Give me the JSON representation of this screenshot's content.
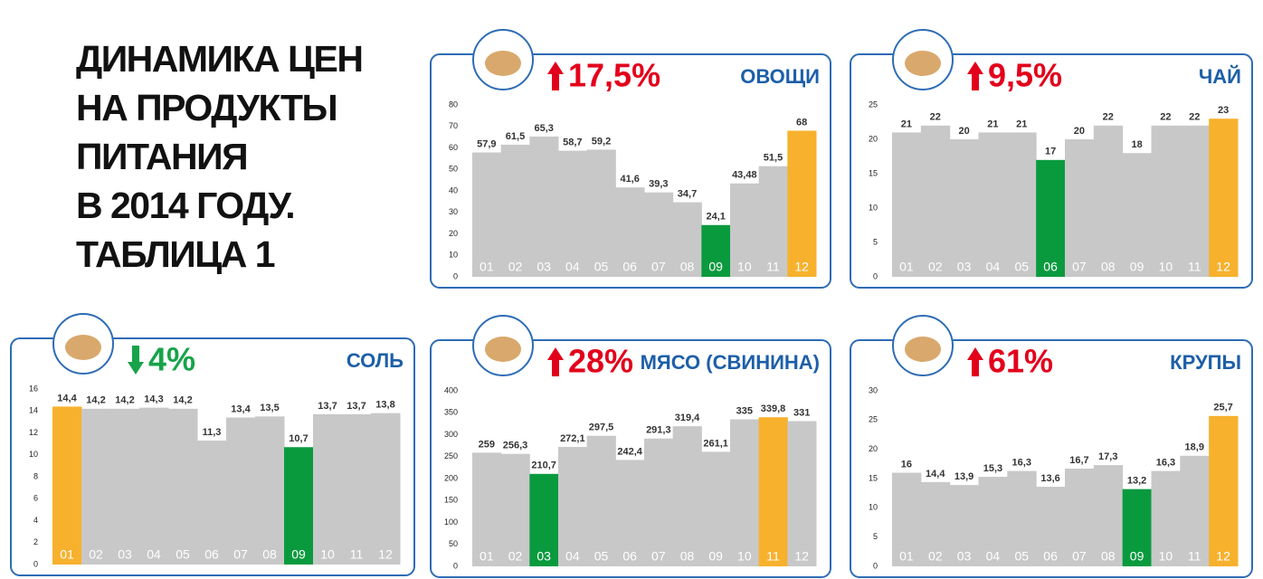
{
  "title_lines": [
    "ДИНАМИКА ЦЕН",
    "НА ПРОДУКТЫ",
    "ПИТАНИЯ",
    "В 2014 ГОДУ.",
    "ТАБЛИЦА 1"
  ],
  "chart_data": [
    {
      "type": "step-bar",
      "title": "ОВОЩИ",
      "change": "17,5%",
      "trend": "up",
      "trend_color": "#e3001b",
      "categories": [
        "01",
        "02",
        "03",
        "04",
        "05",
        "06",
        "07",
        "08",
        "09",
        "10",
        "11",
        "12"
      ],
      "values": [
        57.9,
        61.5,
        65.3,
        58.7,
        59.2,
        41.6,
        39.3,
        34.7,
        24.1,
        43.48,
        51.5,
        68
      ],
      "value_labels": [
        "57,9",
        "61,5",
        "65,3",
        "58,7",
        "59,2",
        "41,6",
        "39,3",
        "34,7",
        "24,1",
        "43,48",
        "51,5",
        "68"
      ],
      "colors": [
        "#c8c8c8",
        "#c8c8c8",
        "#c8c8c8",
        "#c8c8c8",
        "#c8c8c8",
        "#c8c8c8",
        "#c8c8c8",
        "#c8c8c8",
        "#0a9a3e",
        "#c8c8c8",
        "#c8c8c8",
        "#f7b12d"
      ],
      "ylim": [
        0,
        80
      ],
      "yticks": [
        0,
        10,
        20,
        30,
        40,
        50,
        60,
        70,
        80
      ]
    },
    {
      "type": "step-bar",
      "title": "ЧАЙ",
      "change": "9,5%",
      "trend": "up",
      "trend_color": "#e3001b",
      "categories": [
        "01",
        "02",
        "03",
        "04",
        "05",
        "06",
        "07",
        "08",
        "09",
        "10",
        "11",
        "12"
      ],
      "values": [
        21,
        22,
        20,
        21,
        21,
        17,
        20,
        22,
        18,
        22,
        22,
        23
      ],
      "colors": [
        "#c8c8c8",
        "#c8c8c8",
        "#c8c8c8",
        "#c8c8c8",
        "#c8c8c8",
        "#0a9a3e",
        "#c8c8c8",
        "#c8c8c8",
        "#c8c8c8",
        "#c8c8c8",
        "#c8c8c8",
        "#f7b12d"
      ],
      "ylim": [
        0,
        25
      ],
      "yticks": [
        0,
        5,
        10,
        15,
        20,
        25
      ]
    },
    {
      "type": "step-bar",
      "title": "СОЛЬ",
      "change": "4%",
      "trend": "down",
      "trend_color": "#17a34a",
      "categories": [
        "01",
        "02",
        "03",
        "04",
        "05",
        "06",
        "07",
        "08",
        "09",
        "10",
        "11",
        "12"
      ],
      "values": [
        14.4,
        14.2,
        14.2,
        14.3,
        14.2,
        11.3,
        13.4,
        13.5,
        10.7,
        13.7,
        13.7,
        13.8
      ],
      "value_labels": [
        "14,4",
        "14,2",
        "14,2",
        "14,3",
        "14,2",
        "11,3",
        "13,4",
        "13,5",
        "10,7",
        "13,7",
        "13,7",
        "13,8"
      ],
      "colors": [
        "#f7b12d",
        "#c8c8c8",
        "#c8c8c8",
        "#c8c8c8",
        "#c8c8c8",
        "#c8c8c8",
        "#c8c8c8",
        "#c8c8c8",
        "#0a9a3e",
        "#c8c8c8",
        "#c8c8c8",
        "#c8c8c8"
      ],
      "ylim": [
        0,
        16
      ],
      "yticks": [
        0,
        2,
        4,
        6,
        8,
        10,
        12,
        14,
        16
      ]
    },
    {
      "type": "step-bar",
      "title": "МЯСО (СВИНИНА)",
      "change": "28%",
      "trend": "up",
      "trend_color": "#e3001b",
      "categories": [
        "01",
        "02",
        "03",
        "04",
        "05",
        "06",
        "07",
        "08",
        "09",
        "10",
        "11",
        "12"
      ],
      "values": [
        259,
        256.3,
        210.7,
        272.1,
        297.5,
        242.4,
        291.3,
        319.4,
        261.1,
        335,
        339.8,
        331
      ],
      "value_labels": [
        "259",
        "256,3",
        "210,7",
        "272,1",
        "297,5",
        "242,4",
        "291,3",
        "319,4",
        "261,1",
        "335",
        "339,8",
        "331"
      ],
      "colors": [
        "#c8c8c8",
        "#c8c8c8",
        "#0a9a3e",
        "#c8c8c8",
        "#c8c8c8",
        "#c8c8c8",
        "#c8c8c8",
        "#c8c8c8",
        "#c8c8c8",
        "#c8c8c8",
        "#f7b12d",
        "#c8c8c8"
      ],
      "ylim": [
        0,
        400
      ],
      "yticks": [
        0,
        50,
        100,
        150,
        200,
        250,
        300,
        350,
        400
      ]
    },
    {
      "type": "step-bar",
      "title": "КРУПЫ",
      "change": "61%",
      "trend": "up",
      "trend_color": "#e3001b",
      "categories": [
        "01",
        "02",
        "03",
        "04",
        "05",
        "06",
        "07",
        "08",
        "09",
        "10",
        "11",
        "12"
      ],
      "values": [
        16,
        14.4,
        13.9,
        15.3,
        16.3,
        13.6,
        16.7,
        17.3,
        13.2,
        16.3,
        18.9,
        25.7
      ],
      "value_labels": [
        "16",
        "14,4",
        "13,9",
        "15,3",
        "16,3",
        "13,6",
        "16,7",
        "17,3",
        "13,2",
        "16,3",
        "18,9",
        "25,7"
      ],
      "colors": [
        "#c8c8c8",
        "#c8c8c8",
        "#c8c8c8",
        "#c8c8c8",
        "#c8c8c8",
        "#c8c8c8",
        "#c8c8c8",
        "#c8c8c8",
        "#0a9a3e",
        "#c8c8c8",
        "#c8c8c8",
        "#f7b12d"
      ],
      "ylim": [
        0,
        30
      ],
      "yticks": [
        0,
        5,
        10,
        15,
        20,
        25,
        30
      ]
    }
  ]
}
